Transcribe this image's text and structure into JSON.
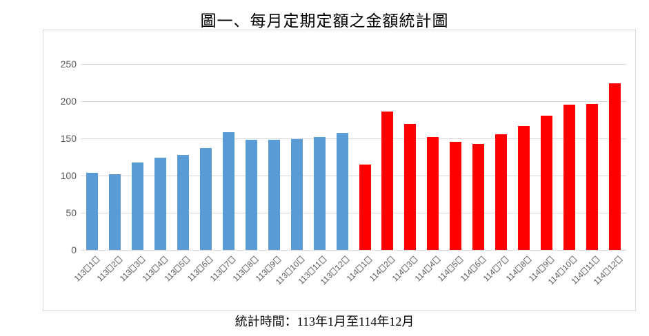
{
  "title": "圖一、每月定期定額之金額統計圖",
  "caption": "統計時間：113年1月至114年12月",
  "colors": {
    "bar_year_113": "#5B9BD5",
    "bar_year_114": "#FF0000",
    "gridline": "#D9D9D9",
    "frame_border": "#D9D9D9",
    "axis_text": "#595959",
    "title_text": "#000000"
  },
  "chart_data": {
    "type": "bar",
    "title": "圖一、每月定期定額之金額統計圖",
    "caption": "統計時間：113年1月至114年12月",
    "categories": [
      "113年1月",
      "113年2月",
      "113年3月",
      "113年4月",
      "113年5月",
      "113年6月",
      "113年7月",
      "113年8月",
      "113年9月",
      "113年10月",
      "113年11月",
      "113年12月",
      "114年1月",
      "114年2月",
      "114年3月",
      "114年4月",
      "114年5月",
      "114年6月",
      "114年7月",
      "114年8月",
      "114年9月",
      "114年10月",
      "114年11月",
      "114年12月"
    ],
    "values": [
      104,
      102,
      118,
      124,
      128,
      137,
      158,
      148,
      148,
      149,
      152,
      157,
      115,
      186,
      169,
      152,
      145,
      143,
      156,
      167,
      181,
      195,
      196,
      224
    ],
    "series_groups": [
      {
        "name": "113",
        "color": "#5B9BD5",
        "start_index": 0,
        "end_index": 11
      },
      {
        "name": "114",
        "color": "#FF0000",
        "start_index": 12,
        "end_index": 23
      }
    ],
    "xlabel": "",
    "ylabel": "",
    "ylim": [
      0,
      250
    ],
    "yticks": [
      0,
      50,
      100,
      150,
      200,
      250
    ],
    "grid": true,
    "legend": "none",
    "missing_glyph_chars": "年月"
  }
}
